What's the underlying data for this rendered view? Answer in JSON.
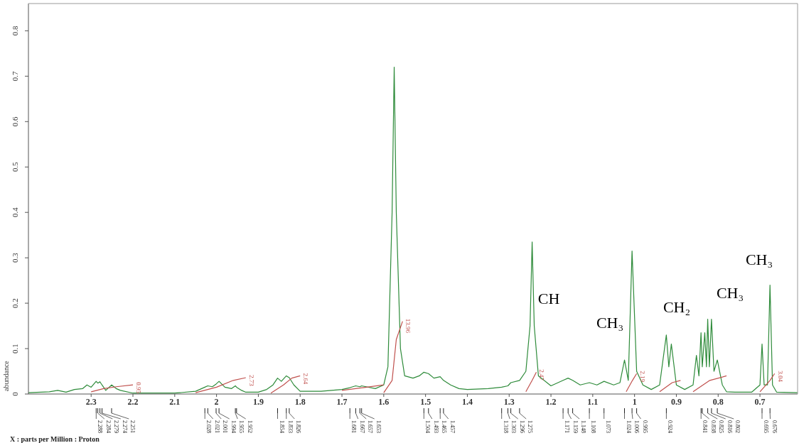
{
  "chart_data": {
    "type": "line",
    "ylabel": "abundance",
    "xlabel": "X : parts per Million : Proton",
    "xlim": [
      2.45,
      0.61
    ],
    "xticks": [
      2.3,
      2.2,
      2.1,
      2.0,
      1.9,
      1.8,
      1.7,
      1.6,
      1.5,
      1.4,
      1.3,
      1.2,
      1.1,
      1.0,
      0.9,
      0.8,
      0.7
    ],
    "ylim": [
      0,
      0.86
    ],
    "yticks": [
      0,
      0.1,
      0.2,
      0.3,
      0.4,
      0.5,
      0.6,
      0.7,
      0.8
    ],
    "marker": "none",
    "line_style": "solid",
    "series": [
      {
        "type": "line",
        "color": "#2e8b3a",
        "x": [
          2.45,
          2.4,
          2.38,
          2.36,
          2.34,
          2.32,
          2.31,
          2.3,
          2.288,
          2.284,
          2.279,
          2.274,
          2.265,
          2.251,
          2.24,
          2.23,
          2.2,
          2.1,
          2.05,
          2.028,
          2.021,
          2.01,
          2.001,
          1.994,
          1.98,
          1.964,
          1.955,
          1.952,
          1.94,
          1.93,
          1.9,
          1.88,
          1.865,
          1.854,
          1.845,
          1.833,
          1.826,
          1.815,
          1.8,
          1.75,
          1.7,
          1.681,
          1.667,
          1.657,
          1.653,
          1.62,
          1.6,
          1.59,
          1.58,
          1.575,
          1.57,
          1.56,
          1.55,
          1.53,
          1.515,
          1.504,
          1.493,
          1.48,
          1.465,
          1.457,
          1.44,
          1.42,
          1.4,
          1.35,
          1.318,
          1.303,
          1.296,
          1.275,
          1.26,
          1.25,
          1.245,
          1.24,
          1.23,
          1.2,
          1.171,
          1.159,
          1.148,
          1.13,
          1.108,
          1.09,
          1.073,
          1.05,
          1.035,
          1.024,
          1.015,
          1.006,
          0.995,
          0.98,
          0.96,
          0.94,
          0.924,
          0.918,
          0.912,
          0.9,
          0.88,
          0.86,
          0.852,
          0.846,
          0.841,
          0.838,
          0.832,
          0.828,
          0.825,
          0.821,
          0.816,
          0.81,
          0.802,
          0.79,
          0.78,
          0.76,
          0.72,
          0.7,
          0.695,
          0.69,
          0.682,
          0.676,
          0.67,
          0.66,
          0.61
        ],
        "values": [
          0.003,
          0.005,
          0.008,
          0.004,
          0.01,
          0.012,
          0.02,
          0.015,
          0.028,
          0.024,
          0.027,
          0.02,
          0.008,
          0.02,
          0.012,
          0.008,
          0.002,
          0.002,
          0.006,
          0.015,
          0.018,
          0.016,
          0.022,
          0.028,
          0.015,
          0.012,
          0.018,
          0.015,
          0.008,
          0.004,
          0.004,
          0.01,
          0.02,
          0.035,
          0.028,
          0.04,
          0.036,
          0.02,
          0.006,
          0.006,
          0.01,
          0.014,
          0.018,
          0.016,
          0.018,
          0.012,
          0.02,
          0.06,
          0.4,
          0.72,
          0.4,
          0.1,
          0.04,
          0.035,
          0.04,
          0.048,
          0.045,
          0.035,
          0.038,
          0.03,
          0.02,
          0.012,
          0.01,
          0.012,
          0.015,
          0.018,
          0.025,
          0.03,
          0.05,
          0.15,
          0.335,
          0.15,
          0.04,
          0.018,
          0.03,
          0.035,
          0.03,
          0.02,
          0.025,
          0.02,
          0.028,
          0.02,
          0.025,
          0.075,
          0.03,
          0.315,
          0.05,
          0.02,
          0.01,
          0.02,
          0.13,
          0.06,
          0.11,
          0.02,
          0.01,
          0.02,
          0.085,
          0.04,
          0.135,
          0.06,
          0.135,
          0.06,
          0.165,
          0.06,
          0.165,
          0.05,
          0.075,
          0.02,
          0.005,
          0.004,
          0.004,
          0.02,
          0.11,
          0.02,
          0.02,
          0.24,
          0.02,
          0.004,
          0.003
        ]
      },
      {
        "type": "line",
        "color": "#c0504d",
        "x": [
          2.3,
          2.27,
          2.24,
          2.2
        ],
        "values": [
          0.005,
          0.012,
          0.016,
          0.02
        ]
      },
      {
        "type": "line",
        "color": "#c0504d",
        "x": [
          2.05,
          2.0,
          1.96,
          1.93
        ],
        "values": [
          0.003,
          0.015,
          0.03,
          0.036
        ]
      },
      {
        "type": "line",
        "color": "#c0504d",
        "x": [
          1.87,
          1.84,
          1.82,
          1.8
        ],
        "values": [
          0.002,
          0.02,
          0.035,
          0.04
        ]
      },
      {
        "type": "line",
        "color": "#c0504d",
        "x": [
          1.7,
          1.65,
          1.6
        ],
        "values": [
          0.008,
          0.014,
          0.02
        ]
      },
      {
        "type": "line",
        "color": "#c0504d",
        "x": [
          1.6,
          1.58,
          1.57,
          1.555
        ],
        "values": [
          0.003,
          0.03,
          0.12,
          0.16
        ]
      },
      {
        "type": "line",
        "color": "#c0504d",
        "x": [
          1.26,
          1.245,
          1.235
        ],
        "values": [
          0.005,
          0.03,
          0.048
        ]
      },
      {
        "type": "line",
        "color": "#c0504d",
        "x": [
          1.02,
          1.005,
          0.995
        ],
        "values": [
          0.005,
          0.03,
          0.045
        ]
      },
      {
        "type": "line",
        "color": "#c0504d",
        "x": [
          0.94,
          0.91,
          0.89
        ],
        "values": [
          0.005,
          0.025,
          0.03
        ]
      },
      {
        "type": "line",
        "color": "#c0504d",
        "x": [
          0.86,
          0.82,
          0.78
        ],
        "values": [
          0.005,
          0.03,
          0.04
        ]
      },
      {
        "type": "line",
        "color": "#c0504d",
        "x": [
          0.7,
          0.676,
          0.665
        ],
        "values": [
          0.005,
          0.03,
          0.045
        ]
      }
    ],
    "annotations": [
      "CH",
      "CH₃",
      "CH₂",
      "CH₃",
      "CH₃",
      "0.95",
      "2.73",
      "2.64",
      "13.96",
      "2.47",
      "2.19",
      "3.04",
      "2.288",
      "2.284",
      "2.279",
      "2.274",
      "2.251",
      "2.028",
      "2.021",
      "2.001",
      "1.994",
      "1.955",
      "1.952",
      "1.854",
      "1.833",
      "1.826",
      "1.681",
      "1.667",
      "1.657",
      "1.653",
      "1.504",
      "1.493",
      "1.465",
      "1.457",
      "1.318",
      "1.303",
      "1.296",
      "1.275",
      "1.171",
      "1.159",
      "1.148",
      "1.108",
      "1.073",
      "1.024",
      "1.006",
      "0.995",
      "0.924",
      "0.841",
      "0.838",
      "0.825",
      "0.816",
      "0.802",
      "0.695",
      "0.676"
    ]
  }
}
